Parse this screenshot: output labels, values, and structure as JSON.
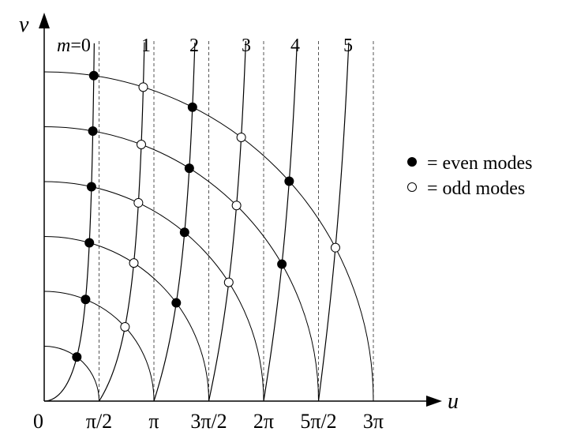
{
  "diagram": {
    "axes": {
      "x_label": "u",
      "y_label": "v",
      "origin_label": "0",
      "x_ticks": [
        "π/2",
        "π",
        "3π/2",
        "2π",
        "5π/2",
        "3π"
      ]
    },
    "mode_labels": {
      "m_var": "m",
      "m_eq": "=0",
      "others": [
        "1",
        "2",
        "3",
        "4",
        "5"
      ]
    },
    "legend": {
      "even_symbol": "●",
      "even_text": "= even modes",
      "odd_symbol": "○",
      "odd_text": "= odd modes"
    },
    "circles_R_in_units_of_pi_over_2": [
      1,
      2,
      3,
      4,
      5,
      6
    ],
    "intersections": {
      "even": [
        {
          "m": 0,
          "R": 1
        },
        {
          "m": 0,
          "R": 2
        },
        {
          "m": 0,
          "R": 3
        },
        {
          "m": 0,
          "R": 4
        },
        {
          "m": 0,
          "R": 5
        },
        {
          "m": 0,
          "R": 6
        },
        {
          "m": 2,
          "R": 3
        },
        {
          "m": 2,
          "R": 4
        },
        {
          "m": 2,
          "R": 5
        },
        {
          "m": 2,
          "R": 6
        },
        {
          "m": 4,
          "R": 5
        },
        {
          "m": 4,
          "R": 6
        }
      ],
      "odd": [
        {
          "m": 1,
          "R": 2
        },
        {
          "m": 1,
          "R": 3
        },
        {
          "m": 1,
          "R": 4
        },
        {
          "m": 1,
          "R": 5
        },
        {
          "m": 1,
          "R": 6
        },
        {
          "m": 3,
          "R": 4
        },
        {
          "m": 3,
          "R": 5
        },
        {
          "m": 3,
          "R": 6
        },
        {
          "m": 5,
          "R": 6
        }
      ]
    }
  }
}
